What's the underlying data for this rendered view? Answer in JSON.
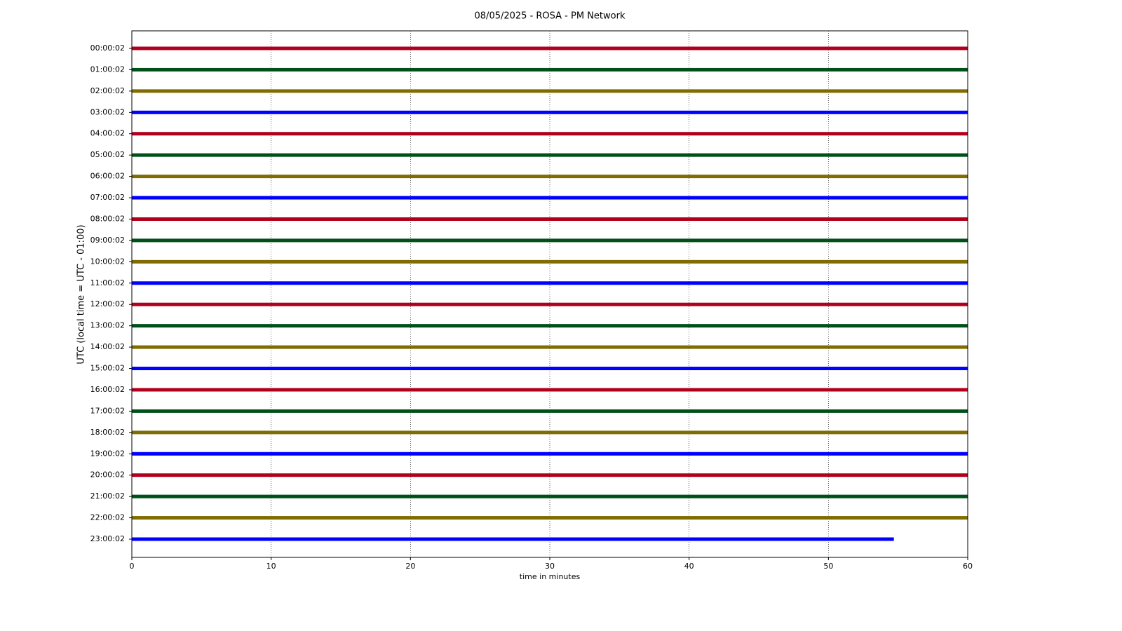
{
  "chart_data": {
    "type": "helicorder",
    "title": "08/05/2025 - ROSA - PM Network",
    "xlabel": "time in minutes",
    "ylabel": "UTC (local time = UTC - 01:00)",
    "xlim": [
      0,
      60
    ],
    "xticks": [
      0,
      10,
      20,
      30,
      40,
      50,
      60
    ],
    "grid": true,
    "series": [
      {
        "name": "00:00:02",
        "color": "#b0001c",
        "x": [
          0,
          60
        ]
      },
      {
        "name": "01:00:02",
        "color": "#00501a",
        "x": [
          0,
          60
        ]
      },
      {
        "name": "02:00:02",
        "color": "#806c00",
        "x": [
          0,
          60
        ]
      },
      {
        "name": "03:00:02",
        "color": "#0000ff",
        "x": [
          0,
          60
        ]
      },
      {
        "name": "04:00:02",
        "color": "#b0001c",
        "x": [
          0,
          60
        ]
      },
      {
        "name": "05:00:02",
        "color": "#00501a",
        "x": [
          0,
          60
        ]
      },
      {
        "name": "06:00:02",
        "color": "#806c00",
        "x": [
          0,
          60
        ]
      },
      {
        "name": "07:00:02",
        "color": "#0000ff",
        "x": [
          0,
          60
        ]
      },
      {
        "name": "08:00:02",
        "color": "#b0001c",
        "x": [
          0,
          60
        ]
      },
      {
        "name": "09:00:02",
        "color": "#00501a",
        "x": [
          0,
          60
        ]
      },
      {
        "name": "10:00:02",
        "color": "#806c00",
        "x": [
          0,
          60
        ]
      },
      {
        "name": "11:00:02",
        "color": "#0000ff",
        "x": [
          0,
          60
        ]
      },
      {
        "name": "12:00:02",
        "color": "#b0001c",
        "x": [
          0,
          60
        ]
      },
      {
        "name": "13:00:02",
        "color": "#00501a",
        "x": [
          0,
          60
        ]
      },
      {
        "name": "14:00:02",
        "color": "#806c00",
        "x": [
          0,
          60
        ]
      },
      {
        "name": "15:00:02",
        "color": "#0000ff",
        "x": [
          0,
          60
        ]
      },
      {
        "name": "16:00:02",
        "color": "#b0001c",
        "x": [
          0,
          60
        ]
      },
      {
        "name": "17:00:02",
        "color": "#00501a",
        "x": [
          0,
          60
        ]
      },
      {
        "name": "18:00:02",
        "color": "#806c00",
        "x": [
          0,
          60
        ]
      },
      {
        "name": "19:00:02",
        "color": "#0000ff",
        "x": [
          0,
          60
        ]
      },
      {
        "name": "20:00:02",
        "color": "#b0001c",
        "x": [
          0,
          60
        ]
      },
      {
        "name": "21:00:02",
        "color": "#00501a",
        "x": [
          0,
          60
        ]
      },
      {
        "name": "22:00:02",
        "color": "#806c00",
        "x": [
          0,
          60
        ]
      },
      {
        "name": "23:00:02",
        "color": "#0000ff",
        "x": [
          0,
          54.7
        ]
      }
    ]
  }
}
